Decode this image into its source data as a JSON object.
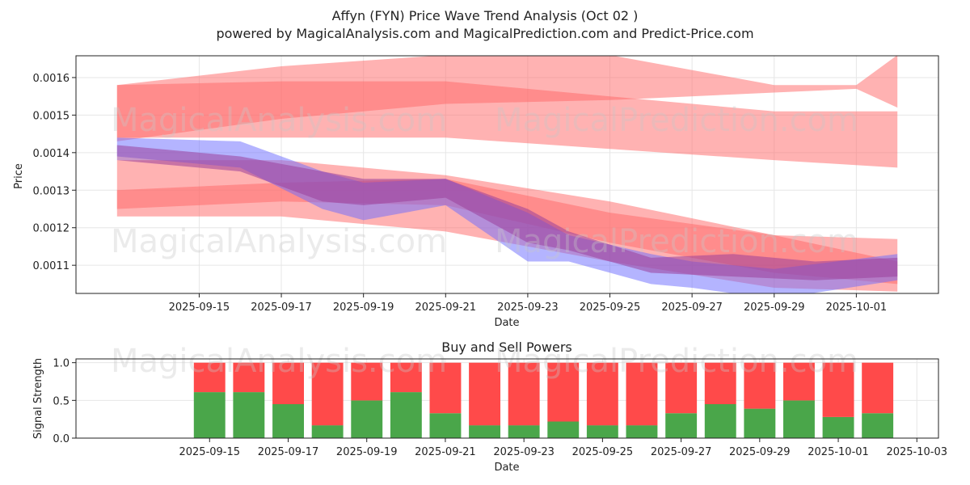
{
  "title_line1": "Affyn (FYN) Price Wave Trend Analysis (Oct 02 )",
  "title_line2": "powered by MagicalAnalysis.com and MagicalPrediction.com and Predict-Price.com",
  "watermarks": [
    "MagicalAnalysis.com",
    "MagicalPrediction.com"
  ],
  "colors": {
    "red_band": "#ff6666",
    "blue_band": "#6a6aff",
    "purple_band": "#9b3f9b",
    "buy": "#4aa64a",
    "sell": "#ff4a4a",
    "grid": "#e6e6e6"
  },
  "chart_data": [
    {
      "type": "area",
      "title": "",
      "xlabel": "Date",
      "ylabel": "Price",
      "x_ticks": [
        "2025-09-15",
        "2025-09-17",
        "2025-09-19",
        "2025-09-21",
        "2025-09-23",
        "2025-09-25",
        "2025-09-27",
        "2025-09-29",
        "2025-10-01"
      ],
      "y_ticks": [
        "0.0011",
        "0.0012",
        "0.0013",
        "0.0014",
        "0.0015",
        "0.0016"
      ],
      "xlim": [
        "2025-09-12",
        "2025-10-03"
      ],
      "ylim": [
        0.001025,
        0.001658
      ],
      "grid": true,
      "bands": [
        {
          "name": "red-upper-outer",
          "color": "red",
          "opacity": 0.5,
          "x": [
            "2025-09-13",
            "2025-09-17",
            "2025-09-21",
            "2025-09-25",
            "2025-09-29",
            "2025-10-01",
            "2025-10-02"
          ],
          "upper": [
            0.00158,
            0.00163,
            0.00166,
            0.00166,
            0.00158,
            0.00158,
            0.00166
          ],
          "lower": [
            0.00143,
            0.00149,
            0.00153,
            0.00154,
            0.00156,
            0.00157,
            0.00152
          ]
        },
        {
          "name": "red-upper-inner",
          "color": "red",
          "opacity": 0.5,
          "x": [
            "2025-09-13",
            "2025-09-17",
            "2025-09-21",
            "2025-09-25",
            "2025-09-29",
            "2025-10-02"
          ],
          "upper": [
            0.00158,
            0.00159,
            0.00159,
            0.00155,
            0.00151,
            0.00151
          ],
          "lower": [
            0.00144,
            0.00144,
            0.00144,
            0.00141,
            0.00138,
            0.00136
          ]
        },
        {
          "name": "red-middle",
          "color": "red",
          "opacity": 0.5,
          "x": [
            "2025-09-13",
            "2025-09-17",
            "2025-09-21",
            "2025-09-25",
            "2025-09-29",
            "2025-10-02"
          ],
          "upper": [
            0.00138,
            0.00138,
            0.00134,
            0.00127,
            0.00118,
            0.00111
          ],
          "lower": [
            0.00123,
            0.00123,
            0.00119,
            0.00111,
            0.00104,
            0.00103
          ]
        },
        {
          "name": "red-lower",
          "color": "red",
          "opacity": 0.5,
          "x": [
            "2025-09-13",
            "2025-09-17",
            "2025-09-21",
            "2025-09-25",
            "2025-09-29",
            "2025-10-02"
          ],
          "upper": [
            0.0013,
            0.00132,
            0.00133,
            0.00124,
            0.00118,
            0.00117
          ],
          "lower": [
            0.00125,
            0.00127,
            0.00126,
            0.00116,
            0.00108,
            0.00105
          ]
        },
        {
          "name": "blue-wave",
          "color": "blue",
          "opacity": 0.5,
          "x": [
            "2025-09-13",
            "2025-09-16",
            "2025-09-18",
            "2025-09-19",
            "2025-09-21",
            "2025-09-23",
            "2025-09-24",
            "2025-09-26",
            "2025-09-27",
            "2025-09-29",
            "2025-10-02"
          ],
          "upper": [
            0.00144,
            0.00143,
            0.00135,
            0.00132,
            0.00133,
            0.00124,
            0.00118,
            0.00113,
            0.00111,
            0.00109,
            0.00113
          ],
          "lower": [
            0.00139,
            0.00136,
            0.00125,
            0.00122,
            0.00126,
            0.00111,
            0.00111,
            0.00105,
            0.00104,
            0.00101,
            0.00106
          ]
        },
        {
          "name": "purple-wave",
          "color": "purple",
          "opacity": 0.55,
          "x": [
            "2025-09-13",
            "2025-09-16",
            "2025-09-18",
            "2025-09-19",
            "2025-09-21",
            "2025-09-23",
            "2025-09-24",
            "2025-09-26",
            "2025-09-28",
            "2025-09-30",
            "2025-10-02"
          ],
          "upper": [
            0.00142,
            0.00139,
            0.00135,
            0.00133,
            0.00133,
            0.00125,
            0.00119,
            0.00112,
            0.00113,
            0.00111,
            0.00112
          ],
          "lower": [
            0.00138,
            0.00135,
            0.00127,
            0.00126,
            0.00128,
            0.00116,
            0.00114,
            0.00108,
            0.00107,
            0.00106,
            0.00107
          ]
        }
      ]
    },
    {
      "type": "bar",
      "title": "Buy and Sell Powers",
      "xlabel": "Date",
      "ylabel": "Signal Strength",
      "x_ticks": [
        "2025-09-15",
        "2025-09-17",
        "2025-09-19",
        "2025-09-21",
        "2025-09-23",
        "2025-09-25",
        "2025-09-27",
        "2025-09-29",
        "2025-10-01",
        "2025-10-03"
      ],
      "y_ticks": [
        "0.0",
        "0.5",
        "1.0"
      ],
      "ylim": [
        0,
        1.05
      ],
      "stacked": true,
      "categories": [
        "2025-09-15",
        "2025-09-16",
        "2025-09-17",
        "2025-09-18",
        "2025-09-19",
        "2025-09-20",
        "2025-09-21",
        "2025-09-22",
        "2025-09-23",
        "2025-09-24",
        "2025-09-25",
        "2025-09-26",
        "2025-09-27",
        "2025-09-28",
        "2025-09-29",
        "2025-09-30",
        "2025-10-01",
        "2025-10-02"
      ],
      "series": [
        {
          "name": "Buy",
          "values": [
            0.61,
            0.61,
            0.45,
            0.17,
            0.5,
            0.61,
            0.33,
            0.17,
            0.17,
            0.22,
            0.17,
            0.17,
            0.33,
            0.45,
            0.39,
            0.5,
            0.28,
            0.33
          ]
        },
        {
          "name": "Sell",
          "values": [
            0.39,
            0.39,
            0.55,
            0.83,
            0.5,
            0.39,
            0.67,
            0.83,
            0.83,
            0.78,
            0.83,
            0.83,
            0.67,
            0.55,
            0.61,
            0.5,
            0.72,
            0.67
          ]
        }
      ]
    }
  ]
}
